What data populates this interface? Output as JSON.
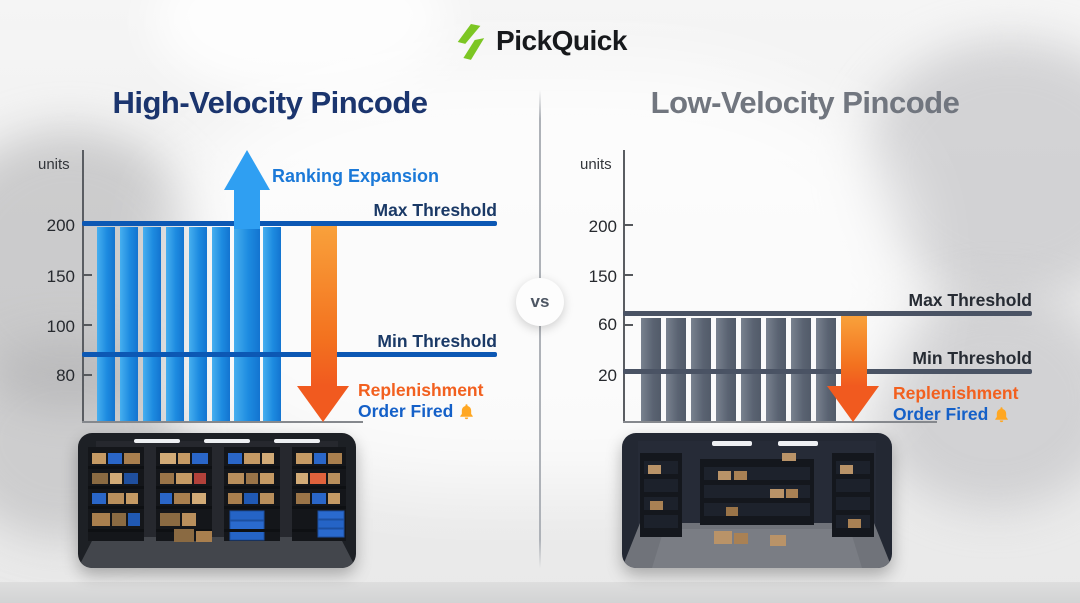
{
  "header": {
    "brand_name": "PickQuick"
  },
  "vs_badge_label": "vs",
  "left": {
    "title": "High-Velocity Pincode",
    "units": "units",
    "ticks": [
      "200",
      "150",
      "100",
      "80"
    ],
    "max_threshold_label": "Max Threshold",
    "min_threshold_label": "Min Threshold",
    "ranking_expansion_label": "Ranking Expansion",
    "replenishment_line1": "Replenishment",
    "replenishment_line2": "Order Fired"
  },
  "right": {
    "title": "Low-Velocity Pincode",
    "units": "units",
    "ticks": [
      "200",
      "150",
      "60",
      "20"
    ],
    "max_threshold_label": "Max Threshold",
    "min_threshold_label": "Min Threshold",
    "replenishment_line1": "Replenishment",
    "replenishment_line2": "Order Fired"
  },
  "icons": {
    "brand": "lightning-bolt-icon",
    "alert": "bell-icon"
  },
  "colors": {
    "navy_title": "#1b356e",
    "gray_title": "#71767f",
    "bar_blue": "#1d8be0",
    "bar_gray": "#5a6372",
    "threshold_blue": "#0c58b4",
    "threshold_gray": "#4a5364",
    "arrow_blue": "#2f9ff2",
    "arrow_orange": "#f15a1f",
    "replenishment_orange": "#f2601f",
    "replenishment_blue": "#1460c8",
    "brand_green": "#7cc623",
    "bell_amber": "#ffa722"
  },
  "chart_data": [
    {
      "type": "bar",
      "panel": "left",
      "title": "High-Velocity Pincode",
      "ylabel": "units",
      "y_tick_labels": [
        200,
        150,
        100,
        80
      ],
      "values": [
        200,
        200,
        200,
        200,
        200,
        200,
        200,
        200
      ],
      "max_threshold": 200,
      "min_threshold": 90,
      "expansion_bar_index": 6,
      "legend_position": "none",
      "grid": false,
      "annotations": [
        "Ranking Expansion",
        "Max Threshold",
        "Min Threshold",
        "Replenishment Order Fired"
      ]
    },
    {
      "type": "bar",
      "panel": "right",
      "title": "Low-Velocity Pincode",
      "ylabel": "units",
      "y_tick_labels": [
        200,
        150,
        60,
        20
      ],
      "values": [
        65,
        65,
        65,
        65,
        65,
        65,
        65,
        65
      ],
      "max_threshold": 65,
      "min_threshold": 20,
      "legend_position": "none",
      "grid": false,
      "annotations": [
        "Max Threshold",
        "Min Threshold",
        "Replenishment Order Fired"
      ]
    }
  ]
}
